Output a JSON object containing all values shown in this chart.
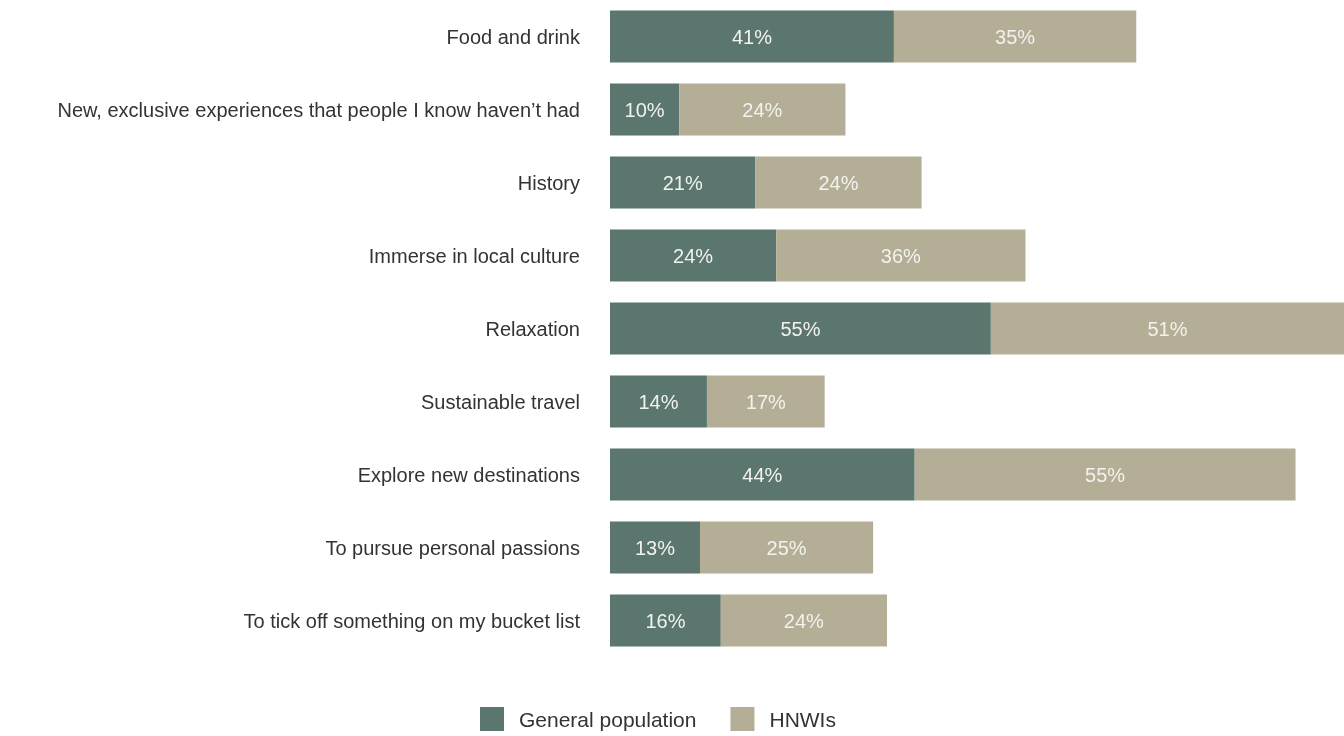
{
  "chart_data": {
    "type": "bar",
    "orientation": "horizontal",
    "stacked": true,
    "categories": [
      "Food and drink",
      "New, exclusive experiences that people I know haven’t had",
      "History",
      "Immerse in local culture",
      "Relaxation",
      "Sustainable travel",
      "Explore new destinations",
      "To pursue personal passions",
      "To tick off something on my bucket list"
    ],
    "series": [
      {
        "name": "General population",
        "color": "#5a766e",
        "values": [
          41,
          10,
          21,
          24,
          55,
          14,
          44,
          13,
          16
        ],
        "value_labels": [
          "41%",
          "10%",
          "21%",
          "24%",
          "55%",
          "14%",
          "44%",
          "13%",
          "16%"
        ]
      },
      {
        "name": "HNWIs",
        "color": "#b4ae96",
        "values": [
          35,
          24,
          24,
          36,
          51,
          17,
          55,
          25,
          24
        ],
        "value_labels": [
          "35%",
          "24%",
          "24%",
          "36%",
          "51%",
          "17%",
          "55%",
          "25%",
          "24%"
        ]
      }
    ],
    "xlim": [
      0,
      106
    ],
    "grid": false,
    "legend": "bottom"
  }
}
